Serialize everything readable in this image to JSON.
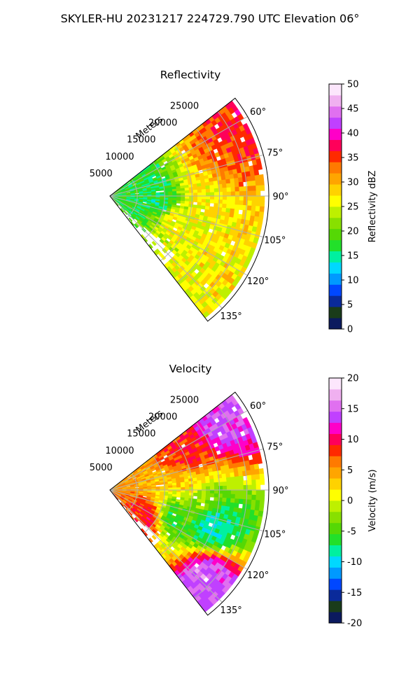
{
  "suptitle": "SKYLER-HU  20231217  224729.790 UTC Elevation 06°",
  "chart_data": [
    {
      "type": "heatmap",
      "title": "Reflectivity",
      "projection": "polar-sector",
      "radial_label": "Meters",
      "radial_ticks": [
        5000,
        10000,
        15000,
        20000,
        25000
      ],
      "radial_range": [
        0,
        29000
      ],
      "angle_ticks": [
        "60°",
        "75°",
        "90°",
        "105°",
        "120°",
        "135°"
      ],
      "angle_range_deg": [
        52,
        142
      ],
      "grid": true,
      "colorbar": {
        "label": "Reflectivity dBZ",
        "range": [
          0,
          50
        ],
        "ticks": [
          0,
          5,
          10,
          15,
          20,
          25,
          30,
          35,
          40,
          45,
          50
        ],
        "colors": [
          "#0b1a5e",
          "#1a3c1a",
          "#0a2a9a",
          "#0047ff",
          "#0099ff",
          "#00d8ff",
          "#00f0a0",
          "#22e02a",
          "#55d805",
          "#88e000",
          "#bef000",
          "#ffff00",
          "#ffd200",
          "#ffa500",
          "#ff7a00",
          "#ff2a00",
          "#ff005a",
          "#ff00c8",
          "#c040ff",
          "#e070f0",
          "#f0b0f0",
          "#fce6fc"
        ]
      },
      "field": {
        "description_levels": "mostly 18-28 dBZ, embedded cores 30-38 dBZ near 60°-75° at 20-28 km",
        "cores": [
          {
            "azimuth": 66,
            "range_m": 25000,
            "value": 37
          },
          {
            "azimuth": 72,
            "range_m": 21000,
            "value": 33
          },
          {
            "azimuth": 85,
            "range_m": 17000,
            "value": 27
          },
          {
            "azimuth": 112,
            "range_m": 13000,
            "value": 26
          },
          {
            "azimuth": 120,
            "range_m": 22000,
            "value": 27
          },
          {
            "azimuth": 96,
            "range_m": 9000,
            "value": 16
          },
          {
            "azimuth": 80,
            "range_m": 6000,
            "value": 17
          }
        ]
      }
    },
    {
      "type": "heatmap",
      "title": "Velocity",
      "projection": "polar-sector",
      "radial_label": "Meters",
      "radial_ticks": [
        5000,
        10000,
        15000,
        20000,
        25000
      ],
      "radial_range": [
        0,
        29000
      ],
      "angle_ticks": [
        "60°",
        "75°",
        "90°",
        "105°",
        "120°",
        "135°"
      ],
      "angle_range_deg": [
        52,
        142
      ],
      "grid": true,
      "colorbar": {
        "label": "Velocity (m/s)",
        "range": [
          -20,
          20
        ],
        "ticks": [
          -20,
          -15,
          -10,
          -5,
          0,
          5,
          10,
          15,
          20
        ],
        "colors": [
          "#0b1a5e",
          "#1a3c1a",
          "#0a2a9a",
          "#0047ff",
          "#0099ff",
          "#00d8ff",
          "#00f0a0",
          "#22e02a",
          "#55d805",
          "#88e000",
          "#bef000",
          "#ffff00",
          "#ffd200",
          "#ffa500",
          "#ff7a00",
          "#ff2a00",
          "#ff005a",
          "#ff00c8",
          "#c040ff",
          "#e070f0",
          "#f0b0f0",
          "#fce6fc"
        ]
      },
      "field": {
        "description_levels": "+10 to +18 m/s (red-magenta) toward 55°-70°, 0 to +5 (yellow) near 80°-95°, -5 to -12 (green-cyan) near 100°-120°, +12 to +18 (red-magenta) near radar at 110°-140°",
        "regions": [
          {
            "azimuth": 60,
            "range_m": 24000,
            "value": 14
          },
          {
            "azimuth": 68,
            "range_m": 15000,
            "value": 9
          },
          {
            "azimuth": 82,
            "range_m": 14000,
            "value": 3
          },
          {
            "azimuth": 97,
            "range_m": 17000,
            "value": -3
          },
          {
            "azimuth": 108,
            "range_m": 20000,
            "value": -9
          },
          {
            "azimuth": 115,
            "range_m": 12000,
            "value": -7
          },
          {
            "azimuth": 125,
            "range_m": 9000,
            "value": 10
          },
          {
            "azimuth": 133,
            "range_m": 24000,
            "value": 15
          }
        ]
      }
    }
  ]
}
